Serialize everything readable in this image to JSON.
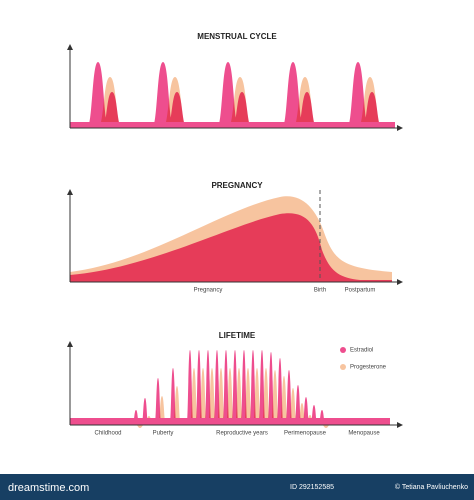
{
  "charts": [
    {
      "title": "MENSTRUAL CYCLE"
    },
    {
      "title": "PREGNANCY",
      "labels": [
        "Pregnancy",
        "Birth",
        "Postpartum"
      ]
    },
    {
      "title": "LIFETIME",
      "labels": [
        "Childhood",
        "Puberty",
        "Reproductive years",
        "Perimenopause",
        "Menopause"
      ],
      "legend": [
        "Estradiol",
        "Progesterone"
      ]
    }
  ],
  "footer": {
    "brand": "dreamstime.com",
    "id": "ID 292152585",
    "author": "© Tetiana Pavliuchenko"
  }
}
